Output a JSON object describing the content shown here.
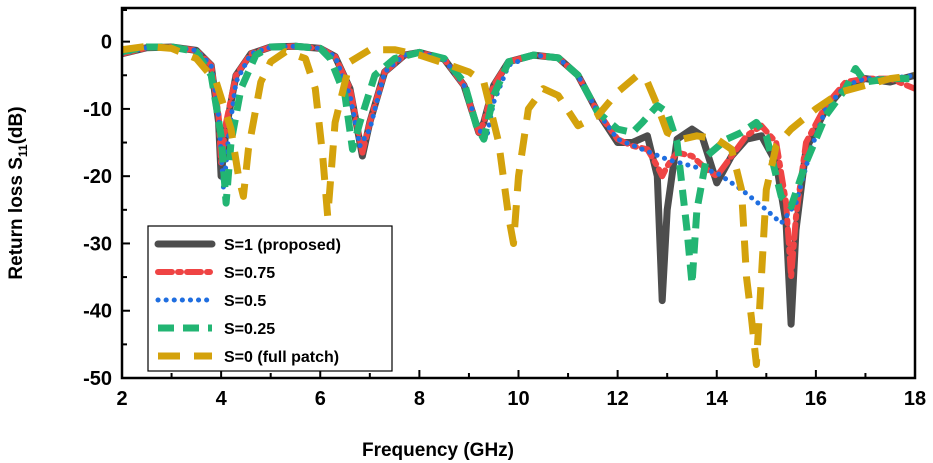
{
  "chart_data": {
    "type": "line",
    "title": "",
    "xlabel": "Frequency (GHz)",
    "ylabel_main": "Return loss S",
    "ylabel_sub": "11",
    "ylabel_unit": "(dB)",
    "xlim": [
      2,
      18
    ],
    "ylim": [
      -50,
      5
    ],
    "xticks": [
      2,
      4,
      6,
      8,
      10,
      12,
      14,
      16,
      18
    ],
    "yticks": [
      0,
      -10,
      -20,
      -30,
      -40,
      -50
    ],
    "grid": false,
    "legend_position": "bottom-left",
    "series": [
      {
        "name": "S=1 (proposed)",
        "color": "#4d4d4d",
        "style": "solid",
        "x": [
          2,
          2.5,
          3.0,
          3.5,
          3.8,
          3.95,
          4.0,
          4.1,
          4.3,
          4.6,
          5.0,
          5.5,
          6.0,
          6.3,
          6.6,
          6.85,
          7.0,
          7.3,
          7.7,
          8.0,
          8.5,
          8.9,
          9.2,
          9.3,
          9.5,
          9.8,
          10.3,
          10.8,
          11.2,
          11.6,
          12.0,
          12.3,
          12.6,
          12.8,
          12.9,
          13.0,
          13.2,
          13.5,
          13.7,
          14.0,
          14.3,
          14.6,
          14.9,
          15.2,
          15.4,
          15.5,
          15.6,
          15.8,
          16.2,
          16.6,
          17.0,
          17.5,
          18.0
        ],
        "y": [
          -1.8,
          -0.9,
          -0.8,
          -1.3,
          -3.5,
          -12,
          -20,
          -13,
          -5,
          -1.8,
          -0.8,
          -0.7,
          -1.0,
          -2.2,
          -7,
          -17,
          -12,
          -4.5,
          -2.0,
          -1.6,
          -2.6,
          -6.5,
          -13.5,
          -12,
          -6.5,
          -3.0,
          -2.0,
          -2.4,
          -5.0,
          -10.5,
          -15.0,
          -15.0,
          -14.0,
          -20,
          -38.5,
          -25,
          -14.5,
          -13.0,
          -14.0,
          -21.0,
          -17.0,
          -14.5,
          -14.0,
          -18.0,
          -27.0,
          -42.0,
          -28.0,
          -16.0,
          -10.0,
          -6.5,
          -5.5,
          -6.0,
          -5.0
        ]
      },
      {
        "name": "S=0.75",
        "color": "#ef4444",
        "style": "dashdot",
        "x": [
          2,
          2.5,
          3.0,
          3.5,
          3.8,
          3.95,
          4.0,
          4.1,
          4.3,
          4.6,
          5.0,
          5.5,
          6.0,
          6.3,
          6.6,
          6.85,
          7.0,
          7.3,
          7.7,
          8.0,
          8.5,
          8.9,
          9.2,
          9.3,
          9.5,
          9.8,
          10.3,
          10.8,
          11.2,
          11.6,
          12.0,
          12.3,
          12.6,
          12.8,
          12.9,
          13.0,
          13.2,
          13.5,
          13.8,
          14.0,
          14.3,
          14.6,
          14.9,
          15.2,
          15.4,
          15.5,
          15.6,
          15.8,
          16.2,
          16.6,
          17.0,
          17.5,
          18.0
        ],
        "y": [
          -1.8,
          -0.9,
          -0.8,
          -1.3,
          -3.5,
          -11,
          -18,
          -12,
          -5,
          -1.8,
          -0.8,
          -0.7,
          -1.0,
          -2.2,
          -7,
          -16.5,
          -12,
          -4.5,
          -2.0,
          -1.6,
          -2.6,
          -6.5,
          -13.5,
          -12,
          -6.5,
          -3.0,
          -2.0,
          -2.4,
          -5.0,
          -10.5,
          -14.5,
          -15.5,
          -16.0,
          -18.5,
          -20.0,
          -18.5,
          -16.5,
          -17.0,
          -19.0,
          -20.0,
          -17.0,
          -14.0,
          -12.5,
          -15.0,
          -24.0,
          -35.0,
          -26.0,
          -15.0,
          -9.5,
          -6.0,
          -5.5,
          -5.5,
          -7.0
        ]
      },
      {
        "name": "S=0.5",
        "color": "#1f6ee0",
        "style": "dotted",
        "x": [
          2,
          2.5,
          3.0,
          3.5,
          3.8,
          3.95,
          4.05,
          4.15,
          4.3,
          4.6,
          5.0,
          5.5,
          6.0,
          6.3,
          6.6,
          6.8,
          7.0,
          7.3,
          7.7,
          8.0,
          8.5,
          8.9,
          9.2,
          9.35,
          9.5,
          9.8,
          10.3,
          10.8,
          11.2,
          11.6,
          12.0,
          12.5,
          13.0,
          13.5,
          14.0,
          14.5,
          15.0,
          15.3,
          15.6,
          15.9,
          16.2,
          16.6,
          17.0,
          17.5,
          18.0
        ],
        "y": [
          -1.8,
          -0.9,
          -0.8,
          -1.3,
          -3.5,
          -11,
          -22,
          -14,
          -6,
          -1.8,
          -0.8,
          -0.7,
          -1.0,
          -2.2,
          -8,
          -15.5,
          -13,
          -4.5,
          -2.0,
          -1.6,
          -2.6,
          -6.5,
          -13.0,
          -14.5,
          -9.0,
          -3.5,
          -2.0,
          -2.4,
          -5.0,
          -10.5,
          -14.5,
          -16.0,
          -17.5,
          -18.5,
          -19.5,
          -22.0,
          -25.0,
          -27.0,
          -24.0,
          -16.0,
          -10.0,
          -6.5,
          -5.5,
          -5.5,
          -5.0
        ]
      },
      {
        "name": "S=0.25",
        "color": "#22b573",
        "style": "dashed",
        "x": [
          2,
          2.5,
          3.0,
          3.5,
          3.8,
          4.0,
          4.1,
          4.2,
          4.4,
          4.7,
          5.0,
          5.5,
          6.0,
          6.2,
          6.5,
          6.65,
          6.8,
          7.1,
          7.5,
          8.0,
          8.5,
          8.9,
          9.15,
          9.3,
          9.5,
          9.8,
          10.3,
          10.8,
          11.2,
          11.6,
          12.0,
          12.3,
          12.5,
          12.8,
          13.0,
          13.2,
          13.4,
          13.5,
          13.6,
          13.8,
          14.2,
          14.5,
          14.8,
          15.0,
          15.3,
          15.5,
          15.8,
          16.2,
          16.6,
          16.8,
          17.0,
          17.5,
          18.0
        ],
        "y": [
          -1.5,
          -0.8,
          -0.8,
          -1.5,
          -5.0,
          -14.0,
          -24.0,
          -15.0,
          -7.0,
          -2.0,
          -0.8,
          -0.7,
          -1.0,
          -2.5,
          -8.0,
          -16.0,
          -12.0,
          -5.0,
          -2.5,
          -1.6,
          -2.5,
          -6.0,
          -12.5,
          -14.5,
          -8.0,
          -3.0,
          -2.0,
          -2.4,
          -5.0,
          -10.5,
          -13.0,
          -13.5,
          -12.0,
          -9.5,
          -10.5,
          -15.0,
          -28.0,
          -36.0,
          -25.0,
          -17.0,
          -14.5,
          -13.5,
          -12.0,
          -14.0,
          -23.0,
          -24.5,
          -18.0,
          -11.0,
          -7.0,
          -4.0,
          -6.0,
          -5.5,
          -5.5
        ]
      },
      {
        "name": "S=0 (full patch)",
        "color": "#d4a20c",
        "style": "longdash",
        "x": [
          2,
          2.5,
          3.0,
          3.5,
          3.9,
          4.2,
          4.35,
          4.45,
          4.55,
          4.8,
          5.0,
          5.3,
          5.7,
          5.9,
          6.05,
          6.15,
          6.3,
          6.6,
          7.0,
          7.5,
          8.0,
          8.5,
          9.0,
          9.3,
          9.6,
          9.8,
          9.9,
          10.0,
          10.2,
          10.5,
          10.8,
          11.2,
          11.6,
          12.0,
          12.4,
          12.6,
          12.8,
          13.0,
          13.3,
          13.6,
          14.0,
          14.3,
          14.5,
          14.6,
          14.7,
          14.8,
          14.9,
          15.0,
          15.2,
          15.5,
          16.0,
          16.5,
          17.0,
          17.5,
          18.0
        ],
        "y": [
          -1.2,
          -0.7,
          -1.0,
          -2.5,
          -6.0,
          -13.0,
          -20.0,
          -23.0,
          -16.0,
          -6.0,
          -3.0,
          -1.5,
          -2.5,
          -7.0,
          -17.0,
          -26.0,
          -12.0,
          -3.0,
          -1.2,
          -1.2,
          -2.0,
          -3.2,
          -4.5,
          -6.0,
          -15.0,
          -26.0,
          -30.0,
          -20.0,
          -10.0,
          -7.0,
          -8.0,
          -12.5,
          -11.0,
          -7.5,
          -5.0,
          -6.0,
          -9.5,
          -13.5,
          -14.5,
          -14.0,
          -14.5,
          -16.0,
          -22.0,
          -35.0,
          -41.0,
          -48.0,
          -35.0,
          -22.0,
          -15.5,
          -13.0,
          -10.0,
          -7.5,
          -6.5,
          -5.5,
          -5.0
        ]
      }
    ]
  }
}
